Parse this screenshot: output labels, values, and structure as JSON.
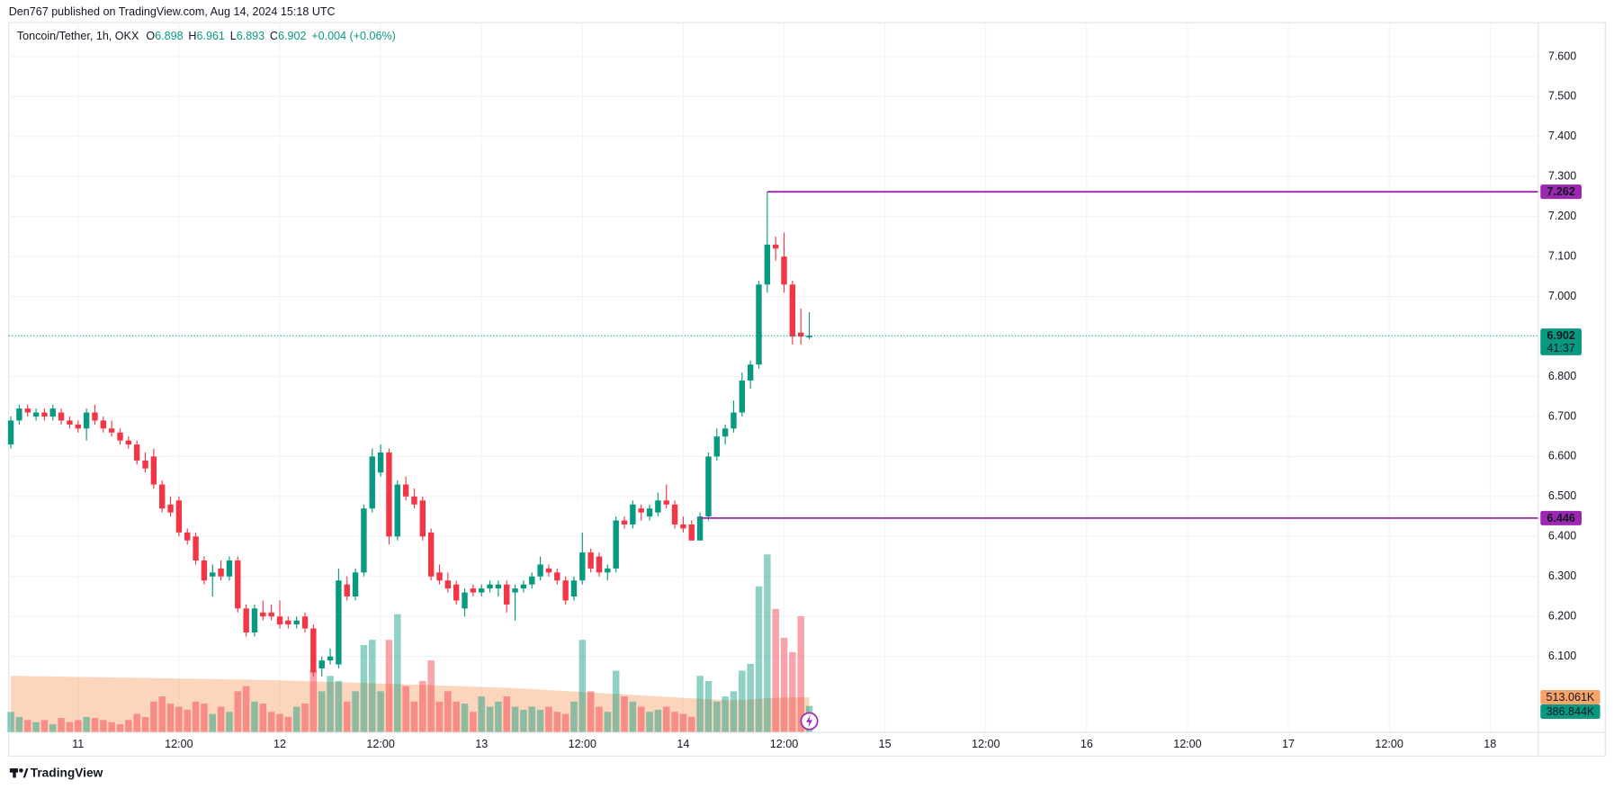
{
  "published": "Den767 published on TradingView.com, Aug 14, 2024 15:18 UTC",
  "brand": "TradingView",
  "chart_data": {
    "type": "candlestick",
    "symbol": "Toncoin/Tether, 1h, OKX",
    "ohlc_prefixes": [
      "O",
      "H",
      "L",
      "C"
    ],
    "change_label": "+0.004 (+0.06%)",
    "countdown": "41:37",
    "up_color": "#089981",
    "down_color": "#f23645",
    "grid": true,
    "xlim": [
      -0.25,
      181.75
    ],
    "xticks": [
      {
        "value": 8,
        "label": "11"
      },
      {
        "value": 20,
        "label": "12:00"
      },
      {
        "value": 32,
        "label": "12"
      },
      {
        "value": 44,
        "label": "12:00"
      },
      {
        "value": 56,
        "label": "13"
      },
      {
        "value": 68,
        "label": "12:00"
      },
      {
        "value": 80,
        "label": "14"
      },
      {
        "value": 92,
        "label": "12:00"
      },
      {
        "value": 104,
        "label": "15"
      },
      {
        "value": 116,
        "label": "12:00"
      },
      {
        "value": 128,
        "label": "16"
      },
      {
        "value": 140,
        "label": "12:00"
      },
      {
        "value": 152,
        "label": "17"
      },
      {
        "value": 164,
        "label": "12:00"
      },
      {
        "value": 176,
        "label": "18"
      }
    ],
    "ylim": [
      5.91,
      7.685
    ],
    "yticks": [
      {
        "value": 6.1,
        "label": "6.100"
      },
      {
        "value": 6.2,
        "label": "6.200"
      },
      {
        "value": 6.3,
        "label": "6.300"
      },
      {
        "value": 6.4,
        "label": "6.400"
      },
      {
        "value": 6.5,
        "label": "6.500"
      },
      {
        "value": 6.6,
        "label": "6.600"
      },
      {
        "value": 6.7,
        "label": "6.700"
      },
      {
        "value": 6.8,
        "label": "6.800"
      },
      {
        "value": 6.9,
        "label": "6.900"
      },
      {
        "value": 7.0,
        "label": "7.000"
      },
      {
        "value": 7.1,
        "label": "7.100"
      },
      {
        "value": 7.2,
        "label": "7.200"
      },
      {
        "value": 7.3,
        "label": "7.300"
      },
      {
        "value": 7.4,
        "label": "7.400"
      },
      {
        "value": 7.5,
        "label": "7.500"
      },
      {
        "value": 7.6,
        "label": "7.600"
      }
    ],
    "price_lines": {
      "color": "#9c27b0",
      "values": [
        7.262,
        6.446
      ]
    },
    "open": [
      6.63,
      6.69,
      6.72,
      6.7,
      6.71,
      6.7,
      6.71,
      6.69,
      6.68,
      6.67,
      6.71,
      6.69,
      6.67,
      6.66,
      6.64,
      6.63,
      6.59,
      6.6,
      6.53,
      6.48,
      6.49,
      6.41,
      6.4,
      6.34,
      6.3,
      6.32,
      6.3,
      6.34,
      6.22,
      6.16,
      6.21,
      6.21,
      6.2,
      6.19,
      6.18,
      6.2,
      6.17,
      6.07,
      6.09,
      6.08,
      6.28,
      6.25,
      6.31,
      6.47,
      6.56,
      6.61,
      6.4,
      6.53,
      6.5,
      6.49,
      6.41,
      6.31,
      6.29,
      6.28,
      6.22,
      6.27,
      6.26,
      6.27,
      6.27,
      6.28,
      6.26,
      6.27,
      6.28,
      6.3,
      6.32,
      6.31,
      6.29,
      6.25,
      6.29,
      6.36,
      6.35,
      6.31,
      6.32,
      6.44,
      6.43,
      6.47,
      6.45,
      6.46,
      6.49,
      6.48,
      6.43,
      6.43,
      6.39,
      6.45,
      6.6,
      6.65,
      6.67,
      6.71,
      6.79,
      6.83,
      7.03,
      7.13,
      7.1,
      7.03,
      6.91,
      6.898
    ],
    "high": [
      6.7,
      6.73,
      6.73,
      6.72,
      6.72,
      6.73,
      6.72,
      6.7,
      6.69,
      6.72,
      6.73,
      6.7,
      6.69,
      6.67,
      6.65,
      6.64,
      6.61,
      6.62,
      6.54,
      6.5,
      6.5,
      6.42,
      6.41,
      6.35,
      6.33,
      6.34,
      6.35,
      6.35,
      6.23,
      6.23,
      6.24,
      6.23,
      6.24,
      6.2,
      6.2,
      6.21,
      6.18,
      6.1,
      6.12,
      6.32,
      6.3,
      6.32,
      6.48,
      6.62,
      6.63,
      6.62,
      6.54,
      6.55,
      6.52,
      6.5,
      6.42,
      6.33,
      6.31,
      6.29,
      6.27,
      6.28,
      6.28,
      6.29,
      6.29,
      6.29,
      6.28,
      6.29,
      6.31,
      6.35,
      6.33,
      6.32,
      6.3,
      6.3,
      6.41,
      6.37,
      6.36,
      6.33,
      6.45,
      6.45,
      6.49,
      6.48,
      6.48,
      6.51,
      6.53,
      6.49,
      6.45,
      6.44,
      6.46,
      6.61,
      6.67,
      6.68,
      6.74,
      6.81,
      6.84,
      7.04,
      7.262,
      7.15,
      7.16,
      7.04,
      6.97,
      6.961
    ],
    "low": [
      6.62,
      6.68,
      6.7,
      6.69,
      6.69,
      6.69,
      6.68,
      6.67,
      6.66,
      6.64,
      6.68,
      6.66,
      6.65,
      6.63,
      6.62,
      6.58,
      6.56,
      6.52,
      6.46,
      6.45,
      6.4,
      6.38,
      6.33,
      6.28,
      6.25,
      6.29,
      6.29,
      6.21,
      6.15,
      6.15,
      6.19,
      6.19,
      6.17,
      6.17,
      6.17,
      6.16,
      6.05,
      6.05,
      6.08,
      6.07,
      6.24,
      6.24,
      6.3,
      6.46,
      6.55,
      6.38,
      6.39,
      6.49,
      6.47,
      6.39,
      6.29,
      6.28,
      6.26,
      6.23,
      6.2,
      6.25,
      6.25,
      6.26,
      6.25,
      6.21,
      6.19,
      6.26,
      6.27,
      6.29,
      6.3,
      6.28,
      6.23,
      6.24,
      6.28,
      6.31,
      6.3,
      6.29,
      6.31,
      6.42,
      6.42,
      6.44,
      6.44,
      6.45,
      6.47,
      6.42,
      6.41,
      6.39,
      6.39,
      6.44,
      6.59,
      6.63,
      6.66,
      6.7,
      6.77,
      6.82,
      7.01,
      7.09,
      7.01,
      6.88,
      6.88,
      6.893
    ],
    "close": [
      6.69,
      6.72,
      6.71,
      6.71,
      6.7,
      6.72,
      6.69,
      6.68,
      6.67,
      6.71,
      6.69,
      6.67,
      6.66,
      6.64,
      6.63,
      6.59,
      6.57,
      6.53,
      6.47,
      6.46,
      6.41,
      6.39,
      6.34,
      6.29,
      6.31,
      6.3,
      6.34,
      6.22,
      6.16,
      6.22,
      6.2,
      6.2,
      6.18,
      6.18,
      6.19,
      6.17,
      6.06,
      6.09,
      6.1,
      6.29,
      6.25,
      6.31,
      6.47,
      6.6,
      6.61,
      6.4,
      6.53,
      6.5,
      6.48,
      6.4,
      6.3,
      6.29,
      6.27,
      6.24,
      6.26,
      6.26,
      6.27,
      6.28,
      6.28,
      6.23,
      6.27,
      6.28,
      6.3,
      6.33,
      6.31,
      6.29,
      6.24,
      6.29,
      6.36,
      6.32,
      6.31,
      6.32,
      6.44,
      6.43,
      6.48,
      6.46,
      6.47,
      6.49,
      6.48,
      6.43,
      6.42,
      6.39,
      6.45,
      6.6,
      6.65,
      6.67,
      6.71,
      6.79,
      6.83,
      7.03,
      7.13,
      7.12,
      7.03,
      6.9,
      6.9,
      6.902
    ],
    "volume": {
      "vlim": [
        0,
        2700000
      ],
      "values": [
        300000,
        225000,
        180000,
        150000,
        180000,
        120000,
        210000,
        150000,
        180000,
        225000,
        210000,
        180000,
        150000,
        120000,
        180000,
        270000,
        225000,
        450000,
        525000,
        420000,
        375000,
        330000,
        450000,
        420000,
        270000,
        375000,
        300000,
        600000,
        675000,
        450000,
        420000,
        300000,
        270000,
        225000,
        375000,
        420000,
        900000,
        600000,
        825000,
        750000,
        450000,
        600000,
        1275000,
        1350000,
        600000,
        1350000,
        1725000,
        675000,
        450000,
        750000,
        1050000,
        450000,
        600000,
        450000,
        420000,
        300000,
        525000,
        375000,
        450000,
        525000,
        375000,
        330000,
        375000,
        330000,
        375000,
        300000,
        270000,
        450000,
        1350000,
        600000,
        375000,
        300000,
        900000,
        525000,
        450000,
        375000,
        300000,
        330000,
        375000,
        300000,
        270000,
        225000,
        825000,
        750000,
        450000,
        525000,
        600000,
        900000,
        1000000,
        2130000,
        2595000,
        1800000,
        1380000,
        1170000,
        1695000,
        386844
      ],
      "value_labels": [
        null,
        null,
        null,
        null,
        null,
        null,
        null,
        null,
        null,
        null,
        null,
        null,
        null,
        null,
        null,
        null,
        null,
        null,
        null,
        null,
        null,
        null,
        null,
        null,
        null,
        null,
        null,
        null,
        null,
        null,
        null,
        null,
        null,
        null,
        null,
        null,
        null,
        null,
        null,
        null,
        null,
        null,
        null,
        null,
        null,
        null,
        null,
        null,
        null,
        null,
        null,
        null,
        null,
        null,
        null,
        null,
        null,
        null,
        null,
        null,
        null,
        null,
        null,
        null,
        null,
        null,
        null,
        null,
        null,
        null,
        null,
        null,
        null,
        null,
        null,
        null,
        null,
        null,
        null,
        null,
        null,
        null,
        null,
        null,
        null,
        null,
        null,
        null,
        null,
        null,
        null,
        null,
        null,
        null,
        null,
        "386.844K"
      ],
      "ma": {
        "color": "#f7a46a",
        "values": [
          825000,
          824000,
          822000,
          820000,
          818000,
          816000,
          814000,
          812000,
          810000,
          808000,
          806000,
          804000,
          802000,
          800000,
          798000,
          796000,
          794000,
          792000,
          790000,
          788000,
          786000,
          784000,
          782000,
          780000,
          778000,
          776000,
          774000,
          772000,
          770000,
          768000,
          765000,
          762000,
          759000,
          756000,
          752000,
          748000,
          744000,
          740000,
          736000,
          732000,
          728000,
          724000,
          720000,
          716000,
          712000,
          708000,
          704000,
          700000,
          696000,
          692000,
          688000,
          684000,
          680000,
          676000,
          672000,
          668000,
          664000,
          660000,
          656000,
          652000,
          645000,
          638000,
          631000,
          624000,
          617000,
          610000,
          603000,
          596000,
          589000,
          582000,
          575000,
          568000,
          561000,
          554000,
          547000,
          540000,
          533000,
          526000,
          519000,
          512000,
          505000,
          498000,
          491000,
          484000,
          477000,
          470000,
          470000,
          475000,
          480000,
          490000,
          500000,
          505000,
          508000,
          510000,
          512000,
          513061
        ],
        "value_labels": [
          null,
          null,
          null,
          null,
          null,
          null,
          null,
          null,
          null,
          null,
          null,
          null,
          null,
          null,
          null,
          null,
          null,
          null,
          null,
          null,
          null,
          null,
          null,
          null,
          null,
          null,
          null,
          null,
          null,
          null,
          null,
          null,
          null,
          null,
          null,
          null,
          null,
          null,
          null,
          null,
          null,
          null,
          null,
          null,
          null,
          null,
          null,
          null,
          null,
          null,
          null,
          null,
          null,
          null,
          null,
          null,
          null,
          null,
          null,
          null,
          null,
          null,
          null,
          null,
          null,
          null,
          null,
          null,
          null,
          null,
          null,
          null,
          null,
          null,
          null,
          null,
          null,
          null,
          null,
          null,
          null,
          null,
          null,
          null,
          null,
          null,
          null,
          null,
          null,
          null,
          null,
          null,
          null,
          null,
          null,
          "513.061K"
        ]
      }
    }
  }
}
